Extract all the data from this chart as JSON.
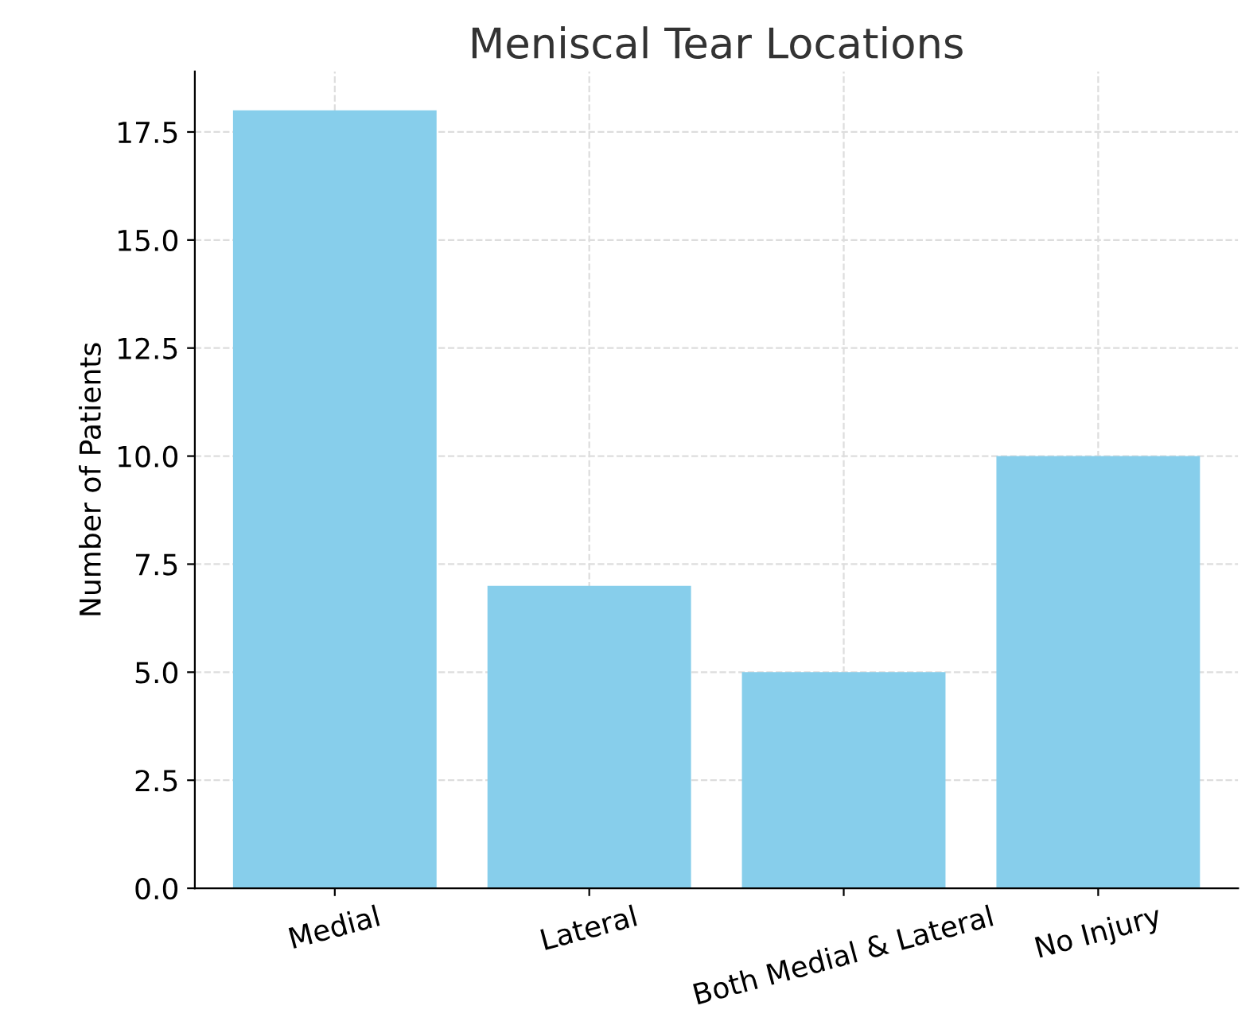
{
  "chart_data": {
    "type": "bar",
    "title": "Meniscal Tear Locations",
    "ylabel": "Number of Patients",
    "categories": [
      "Medial",
      "Lateral",
      "Both Medial & Lateral",
      "No Injury"
    ],
    "values": [
      18,
      7,
      5,
      10
    ],
    "color": "#87ceeb",
    "ylim": [
      0,
      18.9
    ],
    "yticks": [
      {
        "value": 0,
        "label": "0.0"
      },
      2.5,
      {
        "value": 5,
        "label": "5.0"
      },
      7.5,
      {
        "value": 10,
        "label": "10.0"
      },
      12.5,
      {
        "value": 15,
        "label": "15.0"
      },
      17.5
    ],
    "grid": true
  }
}
